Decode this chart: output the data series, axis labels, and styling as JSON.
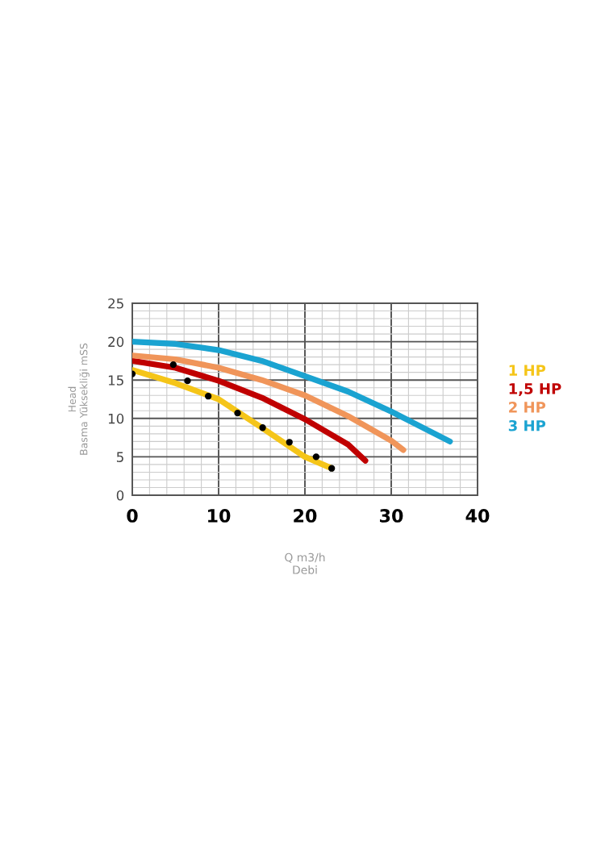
{
  "chart_data": {
    "type": "line",
    "xlabel": "Q m3/h\nDebi",
    "ylabel": "Head\nBasma Yüksekliği mSS",
    "xlim": [
      0,
      40
    ],
    "xticks": [
      0,
      10,
      20,
      30,
      40
    ],
    "ylim": [
      0,
      25
    ],
    "yticks": [
      0,
      5,
      10,
      15,
      20,
      25
    ],
    "grid": true,
    "legend": "right",
    "marker": "none",
    "line_style": "solid",
    "series": [
      {
        "name": "1 HP",
        "color": "#f5c518",
        "x": [
          0,
          5,
          10,
          15,
          20,
          23.1
        ],
        "values": [
          16.3,
          14.6,
          12.5,
          8.8,
          5.0,
          3.5
        ]
      },
      {
        "name": "1,5 HP",
        "color": "#c00000",
        "x": [
          0,
          5,
          10,
          15,
          20,
          25,
          27
        ],
        "values": [
          17.5,
          16.6,
          14.9,
          12.7,
          9.9,
          6.6,
          4.5
        ]
      },
      {
        "name": "2 HP",
        "color": "#f0955a",
        "x": [
          0,
          5,
          10,
          15,
          20,
          25,
          30,
          31.4
        ],
        "values": [
          18.2,
          17.7,
          16.6,
          15.0,
          13.0,
          10.3,
          7.1,
          5.9
        ]
      },
      {
        "name": "3 HP",
        "color": "#1aa3d1",
        "x": [
          0,
          5,
          10,
          15,
          20,
          25,
          30,
          36.8
        ],
        "values": [
          20.0,
          19.7,
          18.9,
          17.5,
          15.5,
          13.5,
          10.9,
          7.0
        ]
      },
      {
        "type": "scatter",
        "marker": "circle",
        "color": "#000000",
        "x": [
          0,
          4.75,
          6.4,
          8.8,
          12.2,
          15.1,
          18.2,
          21.3,
          23.1
        ],
        "values": [
          15.8,
          17.0,
          14.9,
          12.9,
          10.7,
          8.8,
          6.9,
          5.0,
          3.5
        ]
      }
    ]
  }
}
